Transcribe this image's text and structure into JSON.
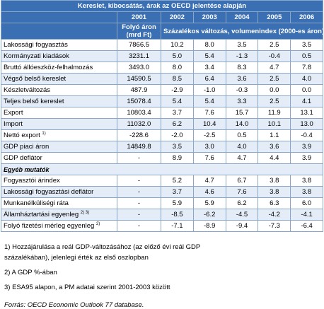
{
  "table": {
    "title": "Kereslet, kibocsátás, árak az OECD jelentése alapján",
    "years": [
      "2001",
      "2002",
      "2003",
      "2004",
      "2005",
      "2006"
    ],
    "subheader_first": "Folyó áron (mrd Ft)",
    "subheader_rest": "Százalékos változás, volumenindex (2000-es áron)",
    "rows": [
      {
        "label": "Lakossági fogyasztás",
        "cells": [
          "7866.5",
          "10.2",
          "8.0",
          "3.5",
          "2.5",
          "3.5"
        ]
      },
      {
        "label": "Kormányzati kiadások",
        "cells": [
          "3231.1",
          "5.0",
          "5.4",
          "-1.3",
          "-0.4",
          "0.5"
        ]
      },
      {
        "label": "Bruttó állóeszköz-felhalmozás",
        "cells": [
          "3493.0",
          "8.0",
          "3.4",
          "8.3",
          "4.7",
          "7.8"
        ]
      },
      {
        "label": "Végső belső kereslet",
        "cells": [
          "14590.5",
          "8.5",
          "6.4",
          "3.6",
          "2.5",
          "4.0"
        ]
      },
      {
        "label": "Készletváltozás",
        "cells": [
          "487.9",
          "-2.9",
          "-1.0",
          "-0.3",
          "0.0",
          "0.0"
        ]
      },
      {
        "label": "Teljes belső kereslet",
        "cells": [
          "15078.4",
          "5.4",
          "5.4",
          "3.3",
          "2.5",
          "4.1"
        ]
      },
      {
        "label": "Export",
        "cells": [
          "10803.4",
          "3.7",
          "7.6",
          "15.7",
          "11.9",
          "13.1"
        ]
      },
      {
        "label": "Import",
        "cells": [
          "11032.0",
          "6.2",
          "10.4",
          "14.0",
          "10.1",
          "13.0"
        ]
      },
      {
        "label": "Nettó export",
        "note": "1)",
        "cells": [
          "-228.6",
          "-2.0",
          "-2.5",
          "0.5",
          "1.1",
          "-0.4"
        ]
      },
      {
        "label": "GDP piaci áron",
        "cells": [
          "14849.8",
          "3.5",
          "3.0",
          "4.0",
          "3.6",
          "3.9"
        ]
      },
      {
        "label": "GDP deflátor",
        "cells": [
          "-",
          "8.9",
          "7.6",
          "4.7",
          "4.4",
          "3.9"
        ]
      }
    ],
    "section": "Egyéb mutatók",
    "section_rows": [
      {
        "label": "Fogyasztói árindex",
        "cells": [
          "-",
          "5.2",
          "4.7",
          "6.7",
          "3.8",
          "3.8"
        ]
      },
      {
        "label": "Lakossági fogyasztási deflátor",
        "cells": [
          "-",
          "3.7",
          "4.6",
          "7.6",
          "3.8",
          "3.8"
        ]
      },
      {
        "label": "Munkanélküliségi ráta",
        "cells": [
          "-",
          "5.9",
          "5.9",
          "6.2",
          "6.3",
          "6.0"
        ]
      },
      {
        "label": "Államháztartási egyenleg",
        "note": "2) 3)",
        "cells": [
          "-",
          "-8.5",
          "-6.2",
          "-4.5",
          "-4.2",
          "-4.1"
        ]
      },
      {
        "label": "Folyó fizetési mérleg egyenleg",
        "note": "2)",
        "cells": [
          "-",
          "-7.1",
          "-8.9",
          "-9.4",
          "-7.3",
          "-6.4"
        ]
      }
    ]
  },
  "footnotes": [
    "1) Hozzájárulása a reál GDP-változásához (az előző évi reál GDP százalékában), jelenlegi érték az első oszlopban",
    "2) A GDP %-ában",
    "3) ESA95 alapon, a PM adatai szerint 2001-2003 között"
  ],
  "source": "Forrás: OECD Economic Outlook 77 database."
}
